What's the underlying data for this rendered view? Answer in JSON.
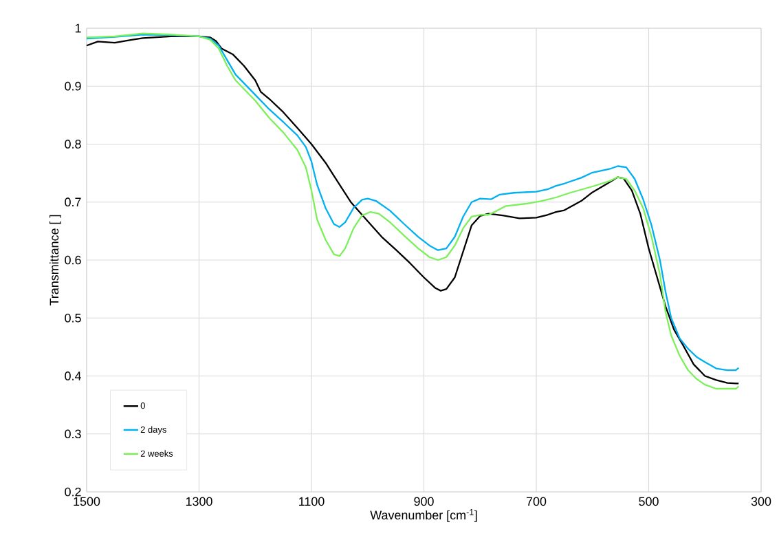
{
  "chart_data": {
    "type": "line",
    "xlabel": "Wavenumber [cm$^{-1}$]",
    "ylabel": "Transmittance [ ]",
    "xlim": [
      1500,
      300
    ],
    "xticks": [
      1500,
      1300,
      1100,
      900,
      700,
      500,
      300
    ],
    "ylim": [
      0.2,
      1
    ],
    "yticks": [
      0.2,
      0.3,
      0.4,
      0.5,
      0.6,
      0.7,
      0.8,
      0.9,
      1
    ],
    "grid": true,
    "legend": "bottom left",
    "marker": "none",
    "line_style": "solid",
    "series": [
      {
        "name": "0",
        "color": "#000000",
        "x": [
          1500,
          1480,
          1450,
          1420,
          1400,
          1350,
          1300,
          1280,
          1270,
          1260,
          1240,
          1220,
          1200,
          1190,
          1175,
          1150,
          1125,
          1100,
          1075,
          1050,
          1030,
          1000,
          975,
          950,
          925,
          900,
          880,
          870,
          860,
          845,
          830,
          815,
          800,
          785,
          760,
          730,
          700,
          680,
          665,
          650,
          620,
          600,
          575,
          555,
          545,
          530,
          515,
          500,
          485,
          470,
          455,
          440,
          420,
          400,
          380,
          360,
          345,
          340
        ],
        "values": [
          0.97,
          0.977,
          0.975,
          0.98,
          0.983,
          0.986,
          0.986,
          0.984,
          0.978,
          0.965,
          0.955,
          0.935,
          0.91,
          0.89,
          0.878,
          0.855,
          0.828,
          0.8,
          0.768,
          0.73,
          0.7,
          0.667,
          0.64,
          0.618,
          0.595,
          0.57,
          0.552,
          0.547,
          0.55,
          0.57,
          0.615,
          0.66,
          0.676,
          0.68,
          0.677,
          0.672,
          0.673,
          0.678,
          0.683,
          0.686,
          0.702,
          0.717,
          0.731,
          0.743,
          0.741,
          0.72,
          0.68,
          0.62,
          0.57,
          0.52,
          0.48,
          0.455,
          0.42,
          0.4,
          0.393,
          0.388,
          0.387,
          0.387
        ]
      },
      {
        "name": "2 days",
        "color": "#00b0f0",
        "x": [
          1500,
          1450,
          1400,
          1350,
          1300,
          1280,
          1265,
          1250,
          1235,
          1200,
          1175,
          1150,
          1125,
          1110,
          1100,
          1090,
          1075,
          1060,
          1050,
          1040,
          1025,
          1010,
          1000,
          985,
          960,
          935,
          910,
          890,
          875,
          860,
          845,
          830,
          815,
          800,
          780,
          765,
          740,
          700,
          680,
          665,
          650,
          620,
          600,
          570,
          555,
          540,
          525,
          510,
          495,
          480,
          470,
          460,
          445,
          430,
          415,
          400,
          380,
          360,
          345,
          340
        ],
        "values": [
          0.982,
          0.985,
          0.989,
          0.988,
          0.986,
          0.982,
          0.97,
          0.945,
          0.92,
          0.885,
          0.86,
          0.838,
          0.815,
          0.795,
          0.77,
          0.73,
          0.69,
          0.662,
          0.657,
          0.665,
          0.69,
          0.704,
          0.706,
          0.702,
          0.685,
          0.662,
          0.64,
          0.625,
          0.617,
          0.62,
          0.64,
          0.675,
          0.7,
          0.706,
          0.705,
          0.713,
          0.716,
          0.718,
          0.722,
          0.728,
          0.732,
          0.742,
          0.751,
          0.757,
          0.762,
          0.76,
          0.74,
          0.705,
          0.66,
          0.6,
          0.545,
          0.5,
          0.465,
          0.447,
          0.433,
          0.424,
          0.413,
          0.41,
          0.41,
          0.414
        ]
      },
      {
        "name": "2 weeks",
        "color": "#7cf05a",
        "x": [
          1500,
          1450,
          1400,
          1350,
          1300,
          1280,
          1265,
          1250,
          1235,
          1200,
          1175,
          1150,
          1125,
          1110,
          1100,
          1090,
          1075,
          1060,
          1050,
          1040,
          1025,
          1010,
          995,
          980,
          960,
          935,
          910,
          890,
          875,
          860,
          845,
          830,
          815,
          800,
          785,
          770,
          755,
          720,
          690,
          665,
          640,
          600,
          570,
          555,
          540,
          525,
          510,
          495,
          480,
          470,
          460,
          445,
          430,
          415,
          400,
          380,
          360,
          345,
          340
        ],
        "values": [
          0.984,
          0.986,
          0.991,
          0.989,
          0.986,
          0.98,
          0.965,
          0.935,
          0.91,
          0.875,
          0.845,
          0.82,
          0.79,
          0.76,
          0.72,
          0.67,
          0.635,
          0.61,
          0.607,
          0.62,
          0.655,
          0.677,
          0.683,
          0.68,
          0.665,
          0.642,
          0.62,
          0.605,
          0.6,
          0.605,
          0.625,
          0.655,
          0.675,
          0.678,
          0.678,
          0.685,
          0.693,
          0.697,
          0.702,
          0.708,
          0.716,
          0.727,
          0.736,
          0.743,
          0.74,
          0.72,
          0.69,
          0.64,
          0.575,
          0.51,
          0.47,
          0.435,
          0.41,
          0.395,
          0.385,
          0.378,
          0.378,
          0.378,
          0.382
        ]
      }
    ]
  }
}
